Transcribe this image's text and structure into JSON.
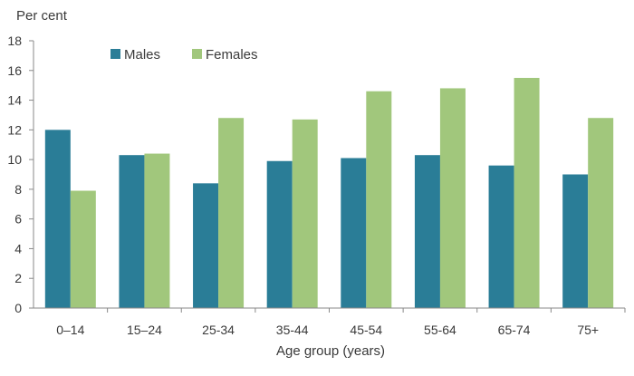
{
  "chart_data": {
    "type": "bar",
    "title": "",
    "ylabel": "Per cent",
    "xlabel": "Age group (years)",
    "ylim": [
      0,
      18
    ],
    "yticks": [
      0,
      2,
      4,
      6,
      8,
      10,
      12,
      14,
      16,
      18
    ],
    "categories": [
      "0–14",
      "15–24",
      "25-34",
      "35-44",
      "45-54",
      "55-64",
      "65-74",
      "75+"
    ],
    "series": [
      {
        "name": "Males",
        "color": "#2a7d97",
        "values": [
          12.0,
          10.3,
          8.4,
          9.9,
          10.1,
          10.3,
          9.6,
          9.0
        ]
      },
      {
        "name": "Females",
        "color": "#a1c77c",
        "values": [
          7.9,
          10.4,
          12.8,
          12.7,
          14.6,
          14.8,
          15.5,
          12.8
        ]
      }
    ],
    "legend_position": "top-left",
    "grid": false
  }
}
